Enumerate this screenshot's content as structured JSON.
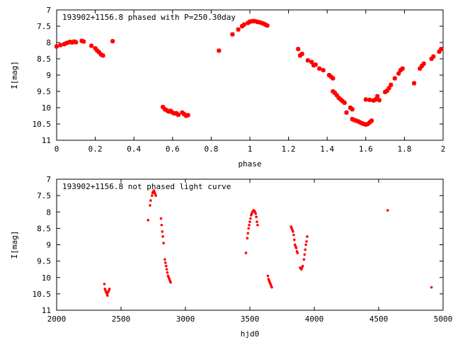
{
  "chart_data": [
    {
      "type": "scatter",
      "title": "193902+1156.8 phased with P=250.30day",
      "xlabel": "phase",
      "ylabel": "I[mag]",
      "xlim": [
        0,
        2
      ],
      "ylim": [
        11,
        7
      ],
      "y_inverted": true,
      "x_ticks": [
        0,
        0.2,
        0.4,
        0.6,
        0.8,
        1,
        1.2,
        1.4,
        1.6,
        1.8,
        2
      ],
      "x_tick_labels": [
        "0",
        "0.2",
        "0.4",
        "0.6",
        "0.8",
        "1",
        "1.2",
        "1.4",
        "1.6",
        "1.8",
        "2"
      ],
      "y_ticks": [
        7,
        7.5,
        8,
        8.5,
        9,
        9.5,
        10,
        10.5,
        11
      ],
      "y_tick_labels": [
        "7",
        "7.5",
        "8",
        "8.5",
        "9",
        "9.5",
        "10",
        "10.5",
        "11"
      ],
      "marker": "plus",
      "color": "#ff0000",
      "grid": false,
      "series": [
        {
          "x": [
            0.0,
            0.02,
            0.04,
            0.05,
            0.06,
            0.07,
            0.08,
            0.09,
            0.1,
            0.13,
            0.14,
            0.18,
            0.2,
            0.21,
            0.22,
            0.23,
            0.24,
            0.29,
            0.55,
            0.56,
            0.57,
            0.58,
            0.59,
            0.6,
            0.61,
            0.62,
            0.63,
            0.65,
            0.66,
            0.67,
            0.68,
            0.84,
            0.91,
            0.94,
            0.96,
            0.97,
            0.99,
            1.0,
            1.01,
            1.02,
            1.03,
            1.04,
            1.05,
            1.06,
            1.07,
            1.08,
            1.09,
            1.25,
            1.26,
            1.27,
            1.3,
            1.32,
            1.33,
            1.34,
            1.36,
            1.38,
            1.41,
            1.42,
            1.43,
            1.43,
            1.44,
            1.45,
            1.46,
            1.47,
            1.48,
            1.49,
            1.5,
            1.52,
            1.53,
            1.53,
            1.54,
            1.55,
            1.56,
            1.57,
            1.58,
            1.59,
            1.6,
            1.61,
            1.62,
            1.63,
            1.6,
            1.62,
            1.64,
            1.65,
            1.66,
            1.67,
            1.7,
            1.71,
            1.72,
            1.73,
            1.75,
            1.77,
            1.78,
            1.79,
            1.85,
            1.88,
            1.89,
            1.9,
            1.94,
            1.95,
            1.98,
            1.99
          ],
          "y": [
            8.12,
            8.08,
            8.05,
            8.02,
            8.0,
            7.98,
            8.0,
            7.97,
            7.99,
            7.95,
            7.97,
            8.1,
            8.18,
            8.25,
            8.3,
            8.37,
            8.4,
            7.96,
            9.98,
            10.05,
            10.08,
            10.12,
            10.1,
            10.15,
            10.18,
            10.17,
            10.22,
            10.15,
            10.2,
            10.25,
            10.23,
            8.25,
            7.75,
            7.6,
            7.5,
            7.45,
            7.4,
            7.36,
            7.35,
            7.34,
            7.35,
            7.37,
            7.38,
            7.4,
            7.42,
            7.45,
            7.48,
            8.2,
            8.4,
            8.35,
            8.55,
            8.6,
            8.7,
            8.68,
            8.8,
            8.85,
            9.0,
            9.05,
            9.1,
            9.5,
            9.55,
            9.62,
            9.7,
            9.75,
            9.8,
            9.85,
            10.15,
            10.0,
            10.05,
            10.35,
            10.38,
            10.4,
            10.42,
            10.45,
            10.48,
            10.5,
            10.52,
            10.5,
            10.45,
            10.4,
            9.75,
            9.76,
            9.78,
            9.75,
            9.65,
            9.77,
            9.52,
            9.48,
            9.4,
            9.3,
            9.1,
            8.95,
            8.85,
            8.8,
            9.25,
            8.8,
            8.72,
            8.65,
            8.5,
            8.43,
            8.28,
            8.2
          ]
        }
      ]
    },
    {
      "type": "scatter",
      "title": "193902+1156.8 not phased light curve",
      "xlabel": "hjd0",
      "ylabel": "I[mag]",
      "xlim": [
        2000,
        5000
      ],
      "ylim": [
        11,
        7
      ],
      "y_inverted": true,
      "x_ticks": [
        2000,
        2500,
        3000,
        3500,
        4000,
        4500,
        5000
      ],
      "x_tick_labels": [
        "2000",
        "2500",
        "3000",
        "3500",
        "4000",
        "4500",
        "5000"
      ],
      "y_ticks": [
        7,
        7.5,
        8,
        8.5,
        9,
        9.5,
        10,
        10.5,
        11
      ],
      "y_tick_labels": [
        "7",
        "7.5",
        "8",
        "8.5",
        "9",
        "9.5",
        "10",
        "10.5",
        "11"
      ],
      "marker": "dot",
      "color": "#ff0000",
      "grid": false,
      "series": [
        {
          "x": [
            2370,
            2375,
            2380,
            2385,
            2390,
            2395,
            2400,
            2405,
            2410,
            2710,
            2725,
            2730,
            2740,
            2745,
            2750,
            2755,
            2760,
            2765,
            2770,
            2810,
            2815,
            2820,
            2825,
            2830,
            2840,
            2845,
            2850,
            2855,
            2860,
            2865,
            2870,
            2875,
            2880,
            2885,
            3470,
            3480,
            3485,
            3490,
            3495,
            3500,
            3505,
            3510,
            3515,
            3520,
            3525,
            3530,
            3535,
            3540,
            3545,
            3550,
            3555,
            3560,
            3640,
            3645,
            3650,
            3655,
            3660,
            3665,
            3670,
            3820,
            3825,
            3830,
            3835,
            3840,
            3845,
            3850,
            3855,
            3860,
            3865,
            3870,
            3890,
            3895,
            3900,
            3905,
            3910,
            3920,
            3925,
            3930,
            3935,
            3940,
            3945,
            4570,
            4910
          ],
          "y": [
            10.2,
            10.35,
            10.4,
            10.45,
            10.5,
            10.55,
            10.45,
            10.4,
            10.35,
            8.25,
            7.8,
            7.65,
            7.5,
            7.42,
            7.38,
            7.35,
            7.4,
            7.45,
            7.5,
            8.2,
            8.4,
            8.6,
            8.75,
            8.95,
            9.45,
            9.55,
            9.65,
            9.75,
            9.85,
            9.95,
            10.0,
            10.05,
            10.1,
            10.15,
            9.25,
            8.8,
            8.65,
            8.5,
            8.4,
            8.3,
            8.2,
            8.1,
            8.05,
            8.0,
            7.97,
            7.95,
            7.97,
            8.0,
            8.05,
            8.15,
            8.3,
            8.4,
            9.95,
            10.05,
            10.1,
            10.15,
            10.2,
            10.25,
            10.3,
            8.45,
            8.5,
            8.55,
            8.6,
            8.7,
            8.85,
            9.0,
            9.05,
            9.1,
            9.2,
            9.25,
            9.7,
            9.72,
            9.75,
            9.7,
            9.65,
            9.45,
            9.3,
            9.15,
            9.0,
            8.9,
            8.75,
            7.95,
            10.3
          ]
        }
      ]
    }
  ]
}
